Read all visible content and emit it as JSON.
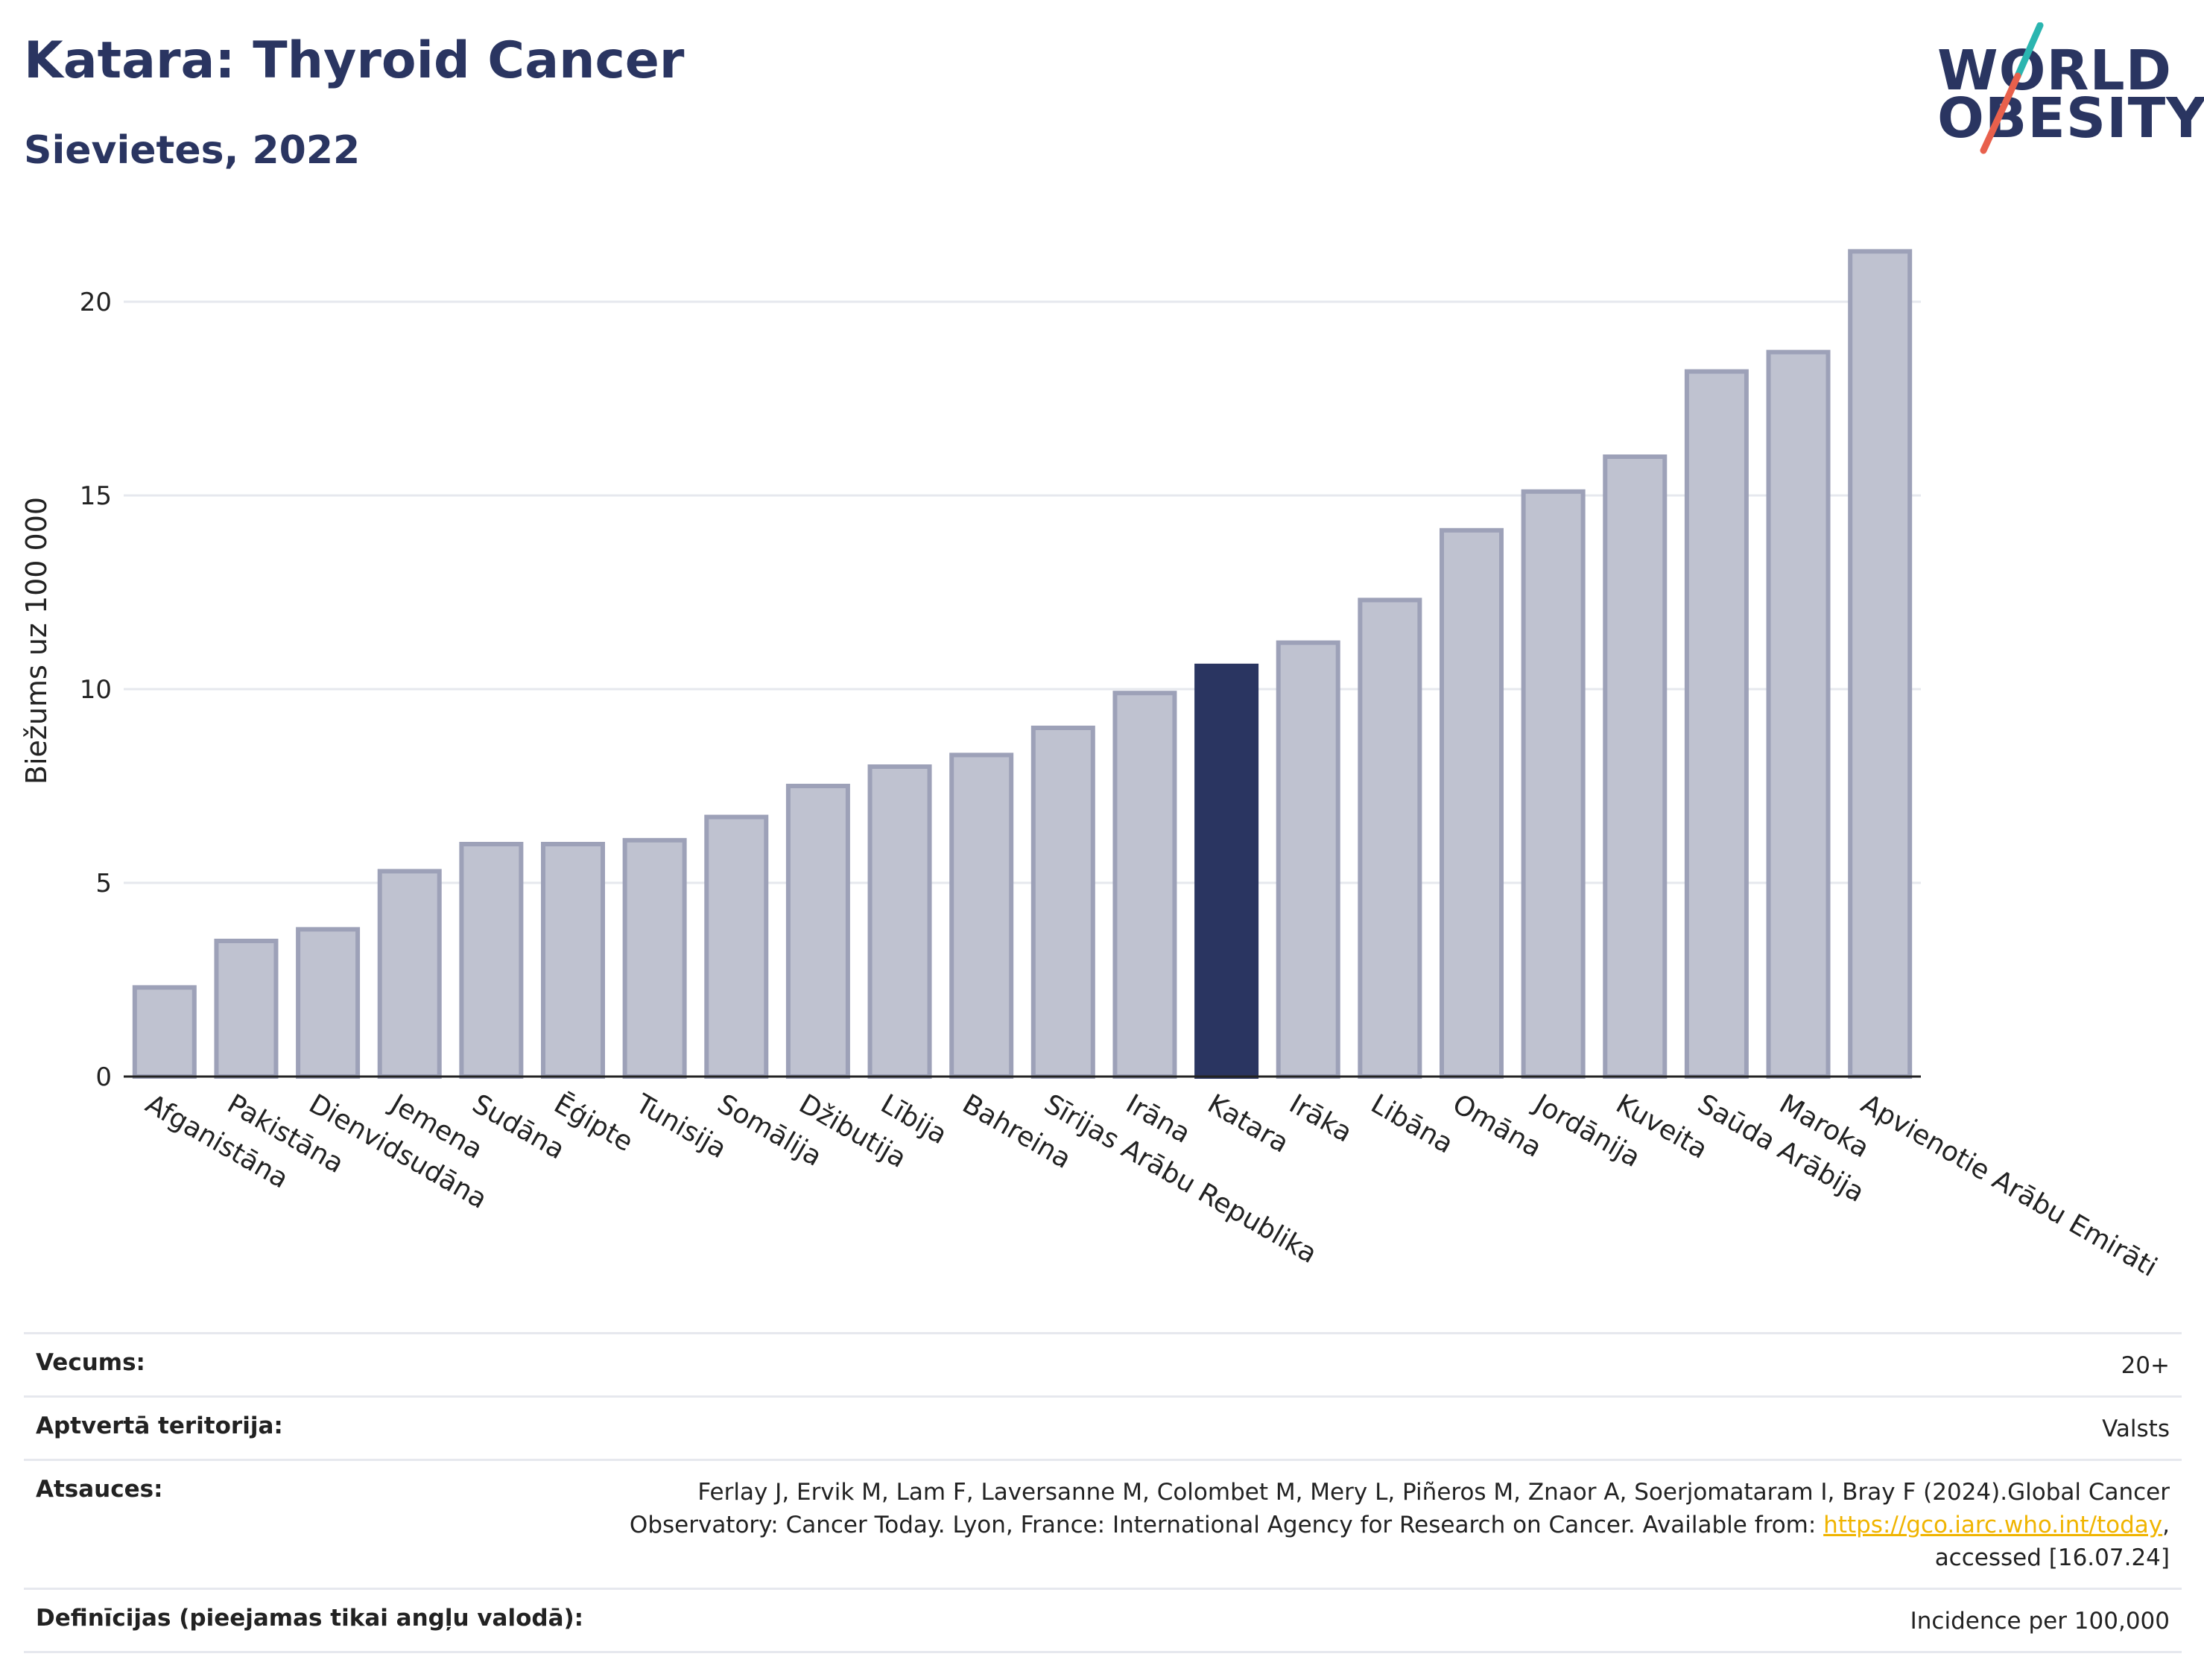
{
  "header": {
    "title": "Katara: Thyroid Cancer",
    "subtitle": "Sievietes, 2022"
  },
  "logo": {
    "line1": "WORLD",
    "line2": "OBESITY",
    "colors": {
      "text": "#2a3561",
      "slash_top": "#2bb5b0",
      "slash_bottom": "#e8604c"
    }
  },
  "chart_data": {
    "type": "bar",
    "ylabel": "Biežums uz 100 000",
    "xlabel": "",
    "ylim": [
      0,
      22
    ],
    "yticks": [
      0,
      5,
      10,
      15,
      20
    ],
    "grid": true,
    "categories": [
      "Afganistāna",
      "Pakistāna",
      "Dienvidsudāna",
      "Jemena",
      "Sudāna",
      "Ēģipte",
      "Tunisija",
      "Somālija",
      "Džibutija",
      "Lībija",
      "Bahreina",
      "Sīrijas Arābu Republika",
      "Irāna",
      "Katara",
      "Irāka",
      "Libāna",
      "Omāna",
      "Jordānija",
      "Kuveita",
      "Saūda Arābija",
      "Maroka",
      "Apvienotie Arābu Emirāti"
    ],
    "values": [
      2.3,
      3.5,
      3.8,
      5.3,
      6.0,
      6.0,
      6.1,
      6.7,
      7.5,
      8.0,
      8.3,
      9.0,
      9.9,
      10.6,
      11.2,
      12.3,
      14.1,
      15.1,
      16.0,
      18.2,
      18.7,
      21.3
    ],
    "highlight": "Katara",
    "colors": {
      "highlight": "#2a3561",
      "default_fill": "#bfc2d0",
      "default_stroke": "#9da1b8"
    }
  },
  "info": {
    "rows": [
      {
        "label": "Vecums:",
        "value": "20+"
      },
      {
        "label": "Aptvertā teritorija:",
        "value": "Valsts"
      },
      {
        "label": "Atsauces:",
        "value_line1": "Ferlay J, Ervik M, Lam F, Laversanne M, Colombet M, Mery L, Piñeros M, Znaor A, Soerjomataram I, Bray F (2024).Global Cancer",
        "value_line2_pre": "Observatory: Cancer Today. Lyon, France: International Agency for Research on Cancer. Available from: ",
        "link": "https://gco.iarc.who.int/today",
        "value_line2_post": ",",
        "value_line3": "accessed [16.07.24]"
      },
      {
        "label": "Definīcijas (pieejamas tikai angļu valodā):",
        "value": "Incidence per 100,000"
      }
    ]
  }
}
